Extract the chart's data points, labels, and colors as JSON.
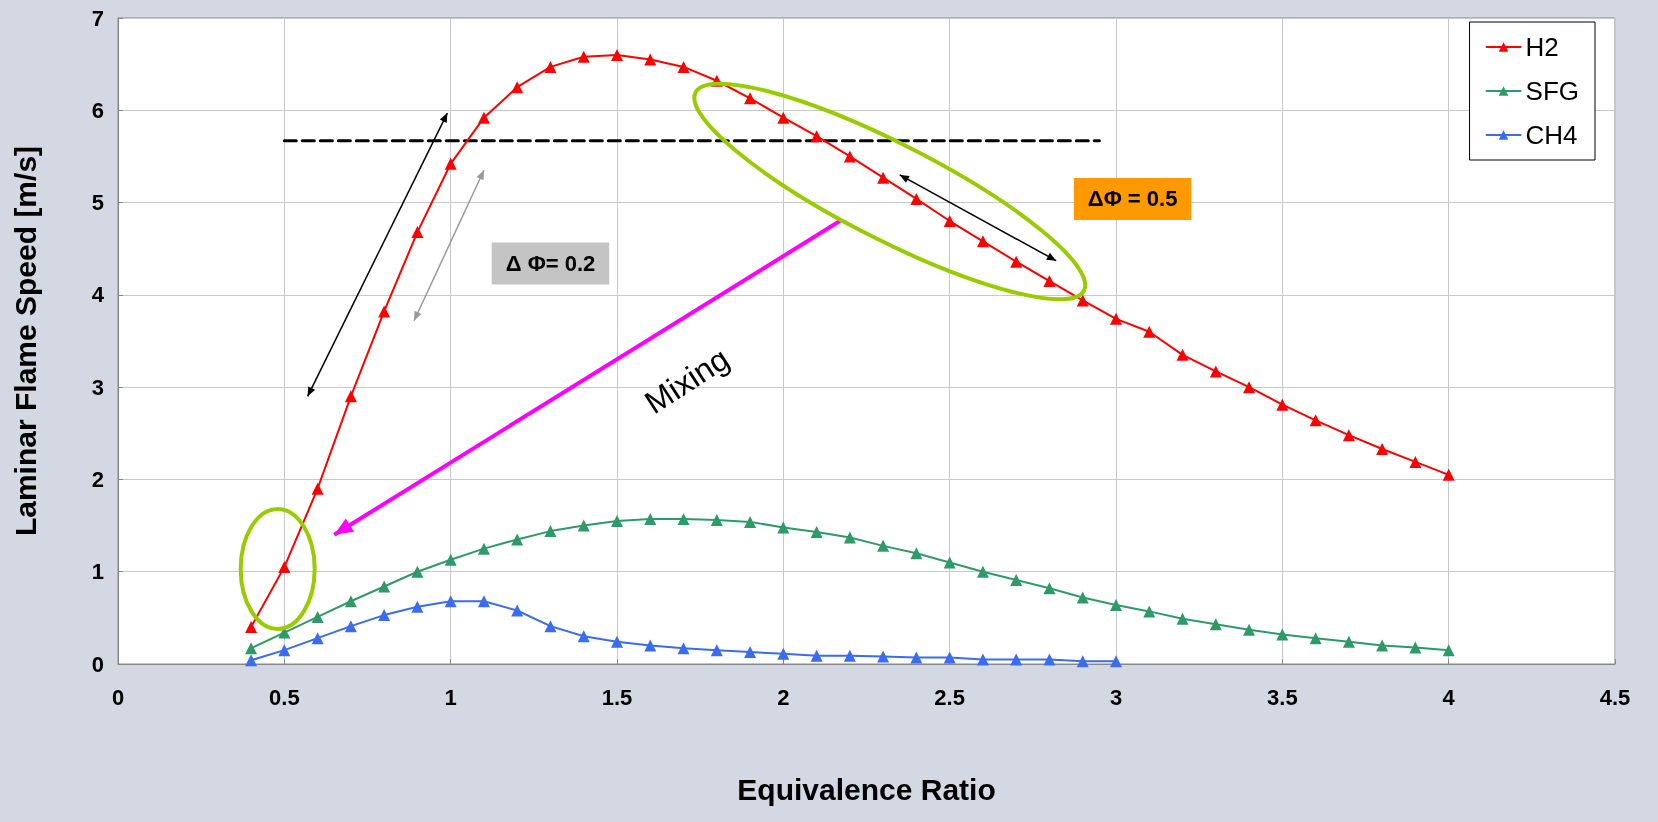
{
  "chart_data": {
    "type": "line",
    "xlabel": "Equivalence Ratio",
    "ylabel": "Laminar Flame Speed [m/s]",
    "xlim": [
      0,
      4.5
    ],
    "xticks": [
      0,
      0.5,
      1,
      1.5,
      2,
      2.5,
      3,
      3.5,
      4,
      4.5
    ],
    "ylim": [
      0,
      7
    ],
    "yticks": [
      0,
      1,
      2,
      3,
      4,
      5,
      6,
      7
    ],
    "grid": true,
    "legend": "top right",
    "marker": "triangle",
    "line_style": "solid",
    "annotations": [
      "Δ Φ= 0.2",
      "ΔΦ = 0.5",
      "Mixing"
    ],
    "series": [
      {
        "name": "H2",
        "color": "#ff0000",
        "x": [
          0.4,
          0.5,
          0.6,
          0.7,
          0.8,
          0.9,
          1.0,
          1.1,
          1.2,
          1.3,
          1.4,
          1.5,
          1.6,
          1.7,
          1.8,
          1.9,
          2.0,
          2.1,
          2.2,
          2.3,
          2.4,
          2.5,
          2.6,
          2.7,
          2.8,
          2.9,
          3.0,
          3.1,
          3.2,
          3.3,
          3.4,
          3.5,
          3.6,
          3.7,
          3.8,
          3.9,
          4.0
        ],
        "values": [
          0.4,
          1.05,
          1.9,
          2.9,
          3.82,
          4.68,
          5.42,
          5.92,
          6.25,
          6.47,
          6.58,
          6.6,
          6.55,
          6.47,
          6.32,
          6.13,
          5.92,
          5.72,
          5.5,
          5.27,
          5.04,
          4.8,
          4.58,
          4.36,
          4.15,
          3.94,
          3.74,
          3.6,
          3.35,
          3.17,
          3.0,
          2.81,
          2.64,
          2.48,
          2.33,
          2.19,
          2.05
        ]
      },
      {
        "name": "SFG",
        "color": "#2e9a6a",
        "x": [
          0.4,
          0.5,
          0.6,
          0.7,
          0.8,
          0.9,
          1.0,
          1.1,
          1.2,
          1.3,
          1.4,
          1.5,
          1.6,
          1.7,
          1.8,
          1.9,
          2.0,
          2.1,
          2.2,
          2.3,
          2.4,
          2.5,
          2.6,
          2.7,
          2.8,
          2.9,
          3.0,
          3.1,
          3.2,
          3.3,
          3.4,
          3.5,
          3.6,
          3.7,
          3.8,
          3.9,
          4.0
        ],
        "values": [
          0.17,
          0.34,
          0.51,
          0.68,
          0.84,
          1.0,
          1.13,
          1.25,
          1.35,
          1.44,
          1.5,
          1.55,
          1.57,
          1.57,
          1.56,
          1.54,
          1.48,
          1.43,
          1.37,
          1.28,
          1.2,
          1.1,
          1.0,
          0.91,
          0.82,
          0.72,
          0.64,
          0.57,
          0.49,
          0.43,
          0.37,
          0.32,
          0.28,
          0.24,
          0.2,
          0.18,
          0.15
        ]
      },
      {
        "name": "CH4",
        "color": "#3b6cf0",
        "x": [
          0.4,
          0.5,
          0.6,
          0.7,
          0.8,
          0.9,
          1.0,
          1.1,
          1.2,
          1.3,
          1.4,
          1.5,
          1.6,
          1.7,
          1.8,
          1.9,
          2.0,
          2.1,
          2.2,
          2.3,
          2.4,
          2.5,
          2.6,
          2.7,
          2.8,
          2.9,
          3.0
        ],
        "values": [
          0.04,
          0.15,
          0.28,
          0.41,
          0.53,
          0.62,
          0.68,
          0.68,
          0.58,
          0.41,
          0.3,
          0.24,
          0.2,
          0.17,
          0.15,
          0.13,
          0.11,
          0.09,
          0.09,
          0.08,
          0.07,
          0.07,
          0.05,
          0.05,
          0.05,
          0.03,
          0.03
        ]
      },
      {
        "color": "#000000",
        "x": [
          0.5,
          2.95
        ],
        "values": [
          5.67,
          5.67
        ],
        "marker": "none",
        "line_style": "dashed"
      }
    ]
  }
}
